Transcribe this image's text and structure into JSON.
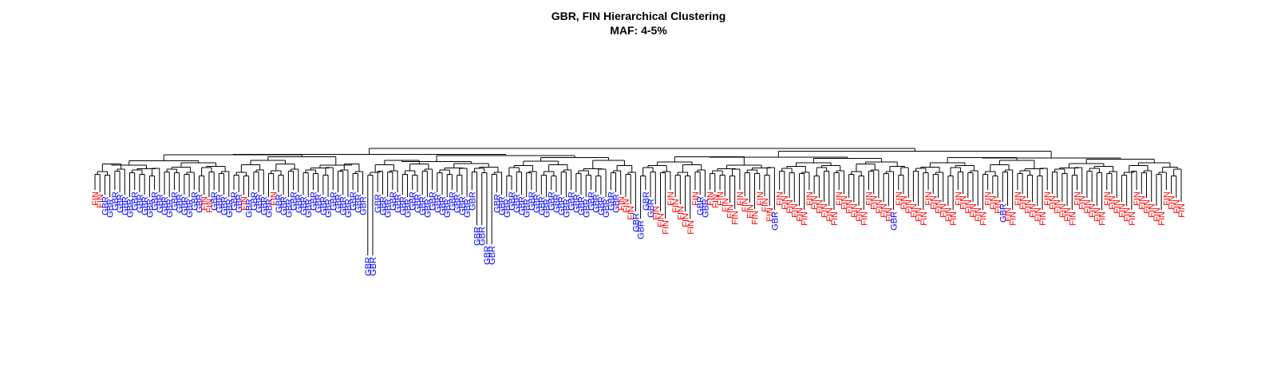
{
  "title": "GBR, FIN Hierarchical Clustering",
  "subtitle": "MAF: 4-5%",
  "colors": {
    "GBR": "#0000ff",
    "FIN": "#ff0000",
    "branch": "#000000"
  },
  "leaves": [
    "FIN",
    "FIN",
    "GBR",
    "GBR",
    "GBR",
    "GBR",
    "GBR",
    "GBR",
    "GBR",
    "GBR",
    "GBR",
    "GBR",
    "GBR",
    "GBR",
    "GBR",
    "GBR",
    "GBR",
    "GBR",
    "GBR",
    "GBR",
    "GBR",
    "GBR",
    "FIN",
    "FIN",
    "GBR",
    "GBR",
    "GBR",
    "GBR",
    "GBR",
    "GBR",
    "FIN",
    "GBR",
    "GBR",
    "GBR",
    "GBR",
    "GBR",
    "FIN",
    "GBR",
    "GBR",
    "GBR",
    "GBR",
    "GBR",
    "GBR",
    "GBR",
    "GBR",
    "GBR",
    "GBR",
    "GBR",
    "GBR",
    "GBR",
    "GBR",
    "GBR",
    "GBR",
    "GBR",
    "GBR",
    "GBR",
    "GBR",
    "GBR",
    "GBR",
    "GBR",
    "GBR",
    "GBR",
    "GBR",
    "GBR",
    "GBR",
    "GBR",
    "GBR",
    "GBR",
    "GBR",
    "GBR",
    "GBR",
    "GBR",
    "GBR",
    "GBR",
    "GBR",
    "GBR",
    "GBR",
    "GBR",
    "GBR",
    "GBR",
    "GBR",
    "GBR",
    "GBR",
    "GBR",
    "GBR",
    "GBR",
    "GBR",
    "GBR",
    "GBR",
    "GBR",
    "GBR",
    "GBR",
    "GBR",
    "GBR",
    "GBR",
    "GBR",
    "GBR",
    "GBR",
    "GBR",
    "GBR",
    "GBR",
    "GBR",
    "GBR",
    "GBR",
    "GBR",
    "GBR",
    "FIN",
    "FIN",
    "FIN",
    "GBR",
    "GBR",
    "GBR",
    "GBR",
    "FIN",
    "FIN",
    "FIN",
    "FIN",
    "FIN",
    "FIN",
    "FIN",
    "FIN",
    "FIN",
    "GBR",
    "GBR",
    "FIN",
    "FIN",
    "FIN",
    "FIN",
    "FIN",
    "FIN",
    "FIN",
    "FIN",
    "FIN",
    "FIN",
    "FIN",
    "FIN",
    "FIN",
    "GBR",
    "FIN",
    "FIN",
    "FIN",
    "FIN",
    "FIN",
    "FIN",
    "FIN",
    "FIN",
    "FIN",
    "FIN",
    "FIN",
    "FIN",
    "FIN",
    "FIN",
    "FIN",
    "FIN",
    "FIN",
    "FIN",
    "FIN",
    "FIN",
    "FIN",
    "FIN",
    "FIN",
    "GBR",
    "FIN",
    "FIN",
    "FIN",
    "FIN",
    "FIN",
    "FIN",
    "FIN",
    "FIN",
    "FIN",
    "FIN",
    "FIN",
    "FIN",
    "FIN",
    "FIN",
    "FIN",
    "FIN",
    "FIN",
    "FIN",
    "FIN",
    "FIN",
    "FIN",
    "GBR",
    "FIN",
    "FIN",
    "FIN",
    "FIN",
    "FIN",
    "FIN",
    "FIN",
    "FIN",
    "FIN",
    "FIN",
    "FIN",
    "FIN",
    "FIN",
    "FIN",
    "FIN",
    "FIN",
    "FIN",
    "FIN",
    "FIN",
    "FIN",
    "FIN",
    "FIN",
    "FIN",
    "FIN",
    "FIN",
    "FIN",
    "FIN",
    "FIN",
    "FIN",
    "FIN",
    "FIN",
    "FIN",
    "FIN",
    "FIN",
    "FIN",
    "FIN"
  ]
}
